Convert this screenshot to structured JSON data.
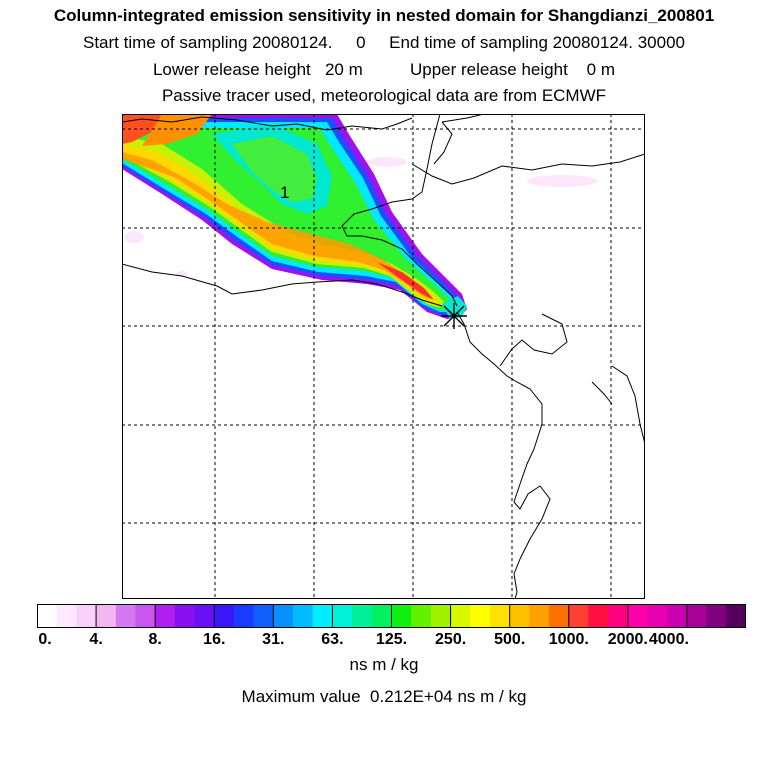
{
  "header": {
    "title": "Column-integrated emission sensitivity in nested domain for Shangdianzi_200801",
    "sampling_line": "Start time of sampling 20080124.     0     End time of sampling 20080124. 30000",
    "release_line": "Lower release height   20 m          Upper release height    0 m",
    "tracer_line": "Passive tracer used, meteorological data are from ECMWF"
  },
  "map": {
    "contour_label": "1",
    "station_marker": "station-star"
  },
  "colorbar": {
    "colors": [
      "#ffffff",
      "#fde8fd",
      "#f8d0f8",
      "#f3b6f3",
      "#d678f0",
      "#cc55f0",
      "#b01ff0",
      "#8a10f0",
      "#6a10f5",
      "#3a18f8",
      "#1a3cff",
      "#1060ff",
      "#0890ff",
      "#00bbff",
      "#00eeff",
      "#00f0d8",
      "#00f098",
      "#00f060",
      "#10f010",
      "#60f000",
      "#a0f000",
      "#d8f800",
      "#ffff00",
      "#ffe000",
      "#ffc000",
      "#ffa000",
      "#ff7000",
      "#ff3f30",
      "#ff1040",
      "#ff0080",
      "#ff00a8",
      "#e800b0",
      "#c800b0",
      "#a80098",
      "#800080",
      "#55005f"
    ],
    "tick_labels": [
      "0.",
      "4.",
      "8.",
      "16.",
      "31.",
      "63.",
      "125.",
      "250.",
      "500.",
      "1000.",
      "2000.",
      "4000."
    ],
    "units": "ns m / kg"
  },
  "footer": {
    "max_value": "Maximum value  0.212E+04 ns m / kg"
  }
}
